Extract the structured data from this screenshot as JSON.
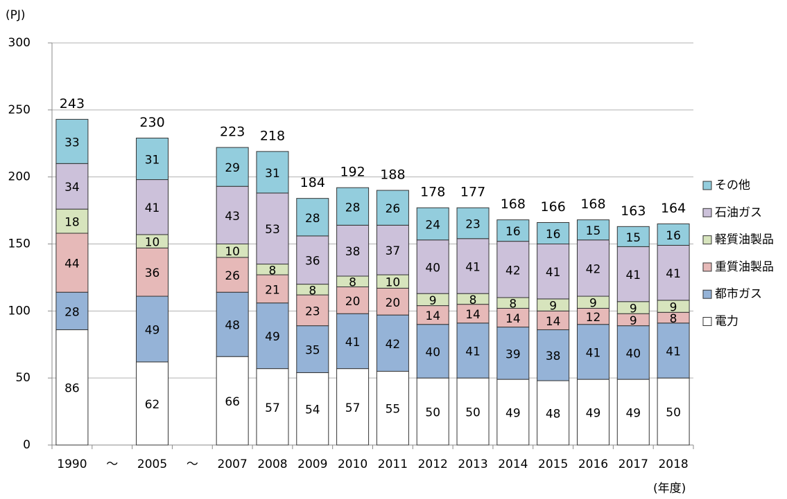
{
  "chart_data": {
    "type": "stacked-bar",
    "y_label": "(PJ)",
    "x_label": "(年度)",
    "categories": [
      "1990",
      "～",
      "2005",
      "～",
      "2007",
      "2008",
      "2009",
      "2010",
      "2011",
      "2012",
      "2013",
      "2014",
      "2015",
      "2016",
      "2017",
      "2018"
    ],
    "series": [
      {
        "name": "電力",
        "color": "#ffffff",
        "values": [
          86,
          null,
          62,
          null,
          66,
          57,
          54,
          57,
          55,
          50,
          50,
          49,
          48,
          49,
          49,
          50
        ]
      },
      {
        "name": "都市ガス",
        "color": "#95b3d7",
        "values": [
          28,
          null,
          49,
          null,
          48,
          49,
          35,
          41,
          42,
          40,
          41,
          39,
          38,
          41,
          40,
          41
        ]
      },
      {
        "name": "重質油製品",
        "color": "#e6b9b8",
        "values": [
          44,
          null,
          36,
          null,
          26,
          21,
          23,
          20,
          20,
          14,
          14,
          14,
          14,
          12,
          9,
          8
        ]
      },
      {
        "name": "軽質油製品",
        "color": "#d7e4bd",
        "values": [
          18,
          null,
          10,
          null,
          10,
          8,
          8,
          8,
          10,
          9,
          8,
          8,
          9,
          9,
          9,
          9
        ]
      },
      {
        "name": "石油ガス",
        "color": "#ccc1da",
        "values": [
          34,
          null,
          41,
          null,
          43,
          53,
          36,
          38,
          37,
          40,
          41,
          42,
          41,
          42,
          41,
          41
        ]
      },
      {
        "name": "その他",
        "color": "#93cddd",
        "values": [
          33,
          null,
          31,
          null,
          29,
          31,
          28,
          28,
          26,
          24,
          23,
          16,
          16,
          15,
          15,
          16
        ]
      }
    ],
    "totals": [
      243,
      null,
      230,
      null,
      223,
      218,
      184,
      192,
      188,
      178,
      177,
      168,
      166,
      168,
      163,
      164
    ],
    "ylim": [
      0,
      300
    ],
    "yticks": [
      0,
      50,
      100,
      150,
      200,
      250,
      300
    ],
    "grid": true
  }
}
